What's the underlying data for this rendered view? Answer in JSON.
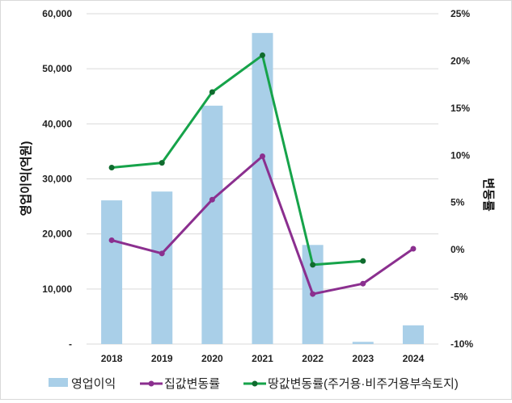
{
  "chart_data": {
    "type": "bar+line",
    "categories": [
      "2018",
      "2019",
      "2020",
      "2021",
      "2022",
      "2023",
      "2024"
    ],
    "series": [
      {
        "name": "영업이익",
        "type": "bar",
        "axis": "left",
        "color": "#a9cfe8",
        "values": [
          26100,
          27700,
          43300,
          56500,
          18000,
          400,
          3400
        ]
      },
      {
        "name": "집값변동률",
        "type": "line",
        "axis": "right",
        "color": "#8b2f8f",
        "values": [
          1.0,
          -0.4,
          5.3,
          9.9,
          -4.7,
          -3.6,
          0.1
        ]
      },
      {
        "name": "땅값변동률(주거용·비주거용부속토지)",
        "type": "line",
        "axis": "right",
        "color": "#16a34a",
        "values": [
          8.7,
          9.2,
          16.7,
          20.6,
          -1.6,
          -1.2,
          null
        ]
      }
    ],
    "ylabel": "영업이익(억원)",
    "y2label": "변동률",
    "ylim": [
      0,
      60000
    ],
    "y2lim": [
      -10,
      25
    ],
    "yticks": [
      "-",
      "10,000",
      "20,000",
      "30,000",
      "40,000",
      "50,000",
      "60,000"
    ],
    "y2ticks": [
      "-10%",
      "-5%",
      "0%",
      "5%",
      "10%",
      "15%",
      "20%",
      "25%"
    ],
    "grid": true,
    "legend": "bottom"
  }
}
